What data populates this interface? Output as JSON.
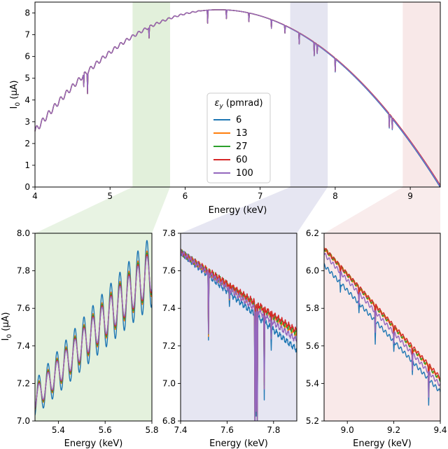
{
  "colors": {
    "green": "#d8ebcf",
    "blue": "#dcdcec",
    "pink": "#f6e0e0",
    "connector_green": "#e8f3e3",
    "connector_blue": "#e6e6f2",
    "connector_pink": "#f9ecec"
  },
  "chart_data": {
    "series": [
      {
        "name": "6",
        "color": "#1f77b4"
      },
      {
        "name": "13",
        "color": "#ff7f0e"
      },
      {
        "name": "27",
        "color": "#2ca02c"
      },
      {
        "name": "60",
        "color": "#d62728"
      },
      {
        "name": "100",
        "color": "#9467bd"
      }
    ],
    "legend": {
      "title": "εy (pmrad)",
      "title_main": "ε",
      "title_sub": "y",
      "title_rest": " (pmrad)",
      "placement": "center"
    },
    "charts": [
      {
        "type": "line",
        "id": "main",
        "xlabel": "Energy (keV)",
        "ylabel": "I0 (μA)",
        "ylabel_main": "I",
        "ylabel_sub": "0",
        "ylabel_rest": " (μA)",
        "xlim": [
          4.0,
          9.4
        ],
        "ylim": [
          0,
          8.5
        ],
        "xticks": [
          "4",
          "5",
          "6",
          "7",
          "8",
          "9"
        ],
        "yticks": [
          "0",
          "1",
          "2",
          "3",
          "4",
          "5",
          "6",
          "7",
          "8"
        ],
        "highlight_bands": [
          {
            "from": 5.3,
            "to": 5.8,
            "color": "green"
          },
          {
            "from": 7.4,
            "to": 7.9,
            "color": "blue"
          },
          {
            "from": 8.9,
            "to": 9.4,
            "color": "pink"
          }
        ],
        "curve": {
          "type": "parabola",
          "peak_x": 6.45,
          "peak_y": 8.15,
          "curvature": 0.93
        }
      },
      {
        "type": "line",
        "id": "zoom1",
        "xlabel": "Energy (keV)",
        "ylabel": "I0 (μA)",
        "ylabel_main": "I",
        "ylabel_sub": "0",
        "ylabel_rest": " (μA)",
        "xlim": [
          5.3,
          5.8
        ],
        "ylim": [
          7.0,
          8.0
        ],
        "xticks": [
          "5.4",
          "5.6",
          "5.8"
        ],
        "yticks": [
          "7.0",
          "7.2",
          "7.4",
          "7.6",
          "7.8",
          "8.0"
        ],
        "background": "green"
      },
      {
        "type": "line",
        "id": "zoom2",
        "xlabel": "Energy (keV)",
        "xlim": [
          7.4,
          7.9
        ],
        "ylim": [
          6.8,
          7.8
        ],
        "xticks": [
          "7.4",
          "7.6",
          "7.8"
        ],
        "yticks": [
          "6.8",
          "7.0",
          "7.2",
          "7.4",
          "7.6",
          "7.8"
        ],
        "background": "blue"
      },
      {
        "type": "line",
        "id": "zoom3",
        "xlabel": "Energy (keV)",
        "xlim": [
          8.9,
          9.4
        ],
        "ylim": [
          5.2,
          6.2
        ],
        "xticks": [
          "9.0",
          "9.2",
          "9.4"
        ],
        "yticks": [
          "5.2",
          "5.4",
          "5.6",
          "5.8",
          "6.0",
          "6.2"
        ],
        "background": "pink"
      }
    ]
  }
}
